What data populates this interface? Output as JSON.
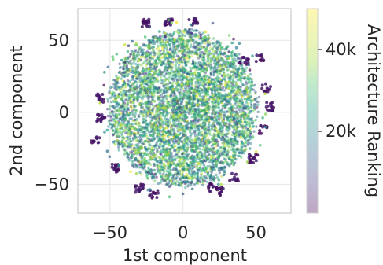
{
  "chart_data": {
    "type": "scatter",
    "xlabel": "1st component",
    "ylabel": "2nd component",
    "xlim": [
      -72,
      74
    ],
    "ylim": [
      -70,
      72
    ],
    "xticks": [
      -50,
      0,
      50
    ],
    "yticks": [
      -50,
      0,
      50
    ],
    "xtick_labels": [
      "−50",
      "0",
      "50"
    ],
    "ytick_labels": [
      "−50",
      "0",
      "50"
    ],
    "grid": true,
    "point_cloud": {
      "center": [
        0,
        3
      ],
      "radius_x": 52,
      "radius_y": 55,
      "point_alpha": 0.5
    },
    "dark_clusters": [
      {
        "x": -20,
        "y": -57
      },
      {
        "x": -46,
        "y": -39
      },
      {
        "x": -60,
        "y": -20
      },
      {
        "x": -57,
        "y": 10
      },
      {
        "x": -56,
        "y": -4
      },
      {
        "x": -25,
        "y": 62
      },
      {
        "x": -10,
        "y": 63
      },
      {
        "x": 7,
        "y": 63
      },
      {
        "x": 42,
        "y": 36
      },
      {
        "x": 53,
        "y": 38
      },
      {
        "x": 57,
        "y": 17
      },
      {
        "x": 60,
        "y": 4
      },
      {
        "x": 55,
        "y": -12
      },
      {
        "x": 48,
        "y": -32
      },
      {
        "x": 35,
        "y": -45
      },
      {
        "x": 25,
        "y": -55
      },
      {
        "x": 20,
        "y": -52
      },
      {
        "x": -30,
        "y": -53
      }
    ],
    "colorbar": {
      "label": "Architecture Ranking",
      "colormap": "viridis",
      "range": [
        0,
        50000
      ],
      "ticks": [
        20000,
        40000
      ],
      "tick_labels": [
        "20k",
        "40k"
      ],
      "alpha": 0.25
    }
  }
}
